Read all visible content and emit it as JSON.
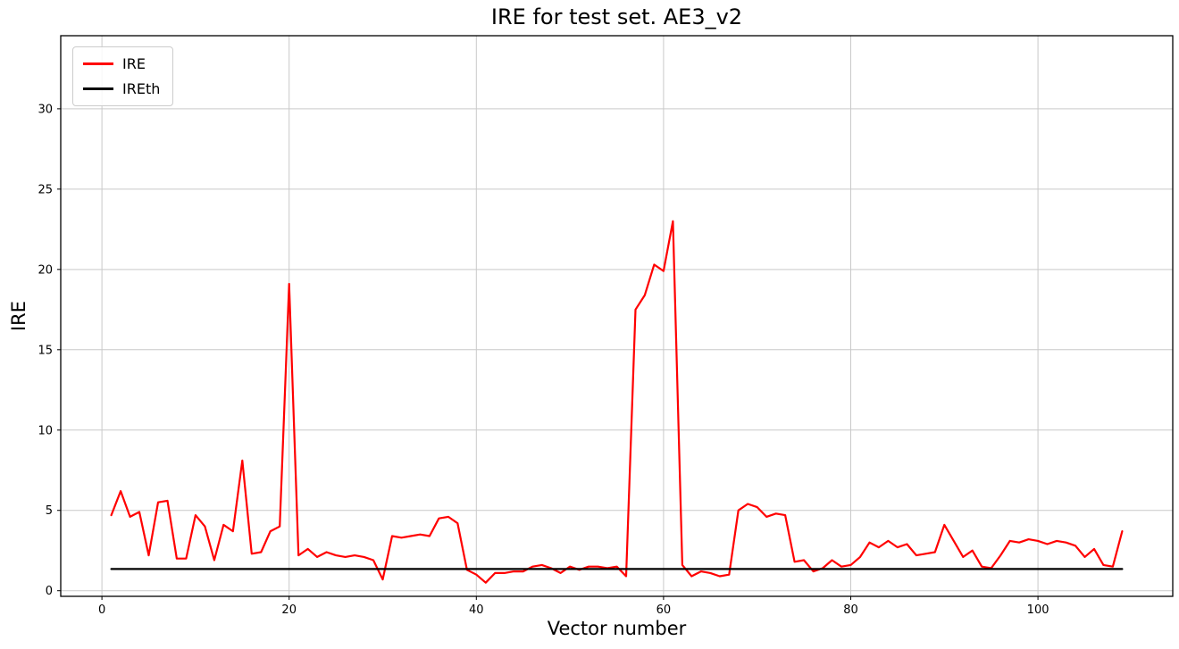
{
  "chart_data": {
    "type": "line",
    "title": "IRE for test set. AE3_v2",
    "xlabel": "Vector number",
    "ylabel": "IRE",
    "xlim": [
      -4.4,
      114.4
    ],
    "ylim": [
      -0.35,
      34.55
    ],
    "xticks": [
      0,
      20,
      40,
      60,
      80,
      100
    ],
    "yticks": [
      0,
      5,
      10,
      15,
      20,
      25,
      30
    ],
    "grid": true,
    "grid_color": "#c9c9c9",
    "legend_position": "upper-left",
    "x_start": 1,
    "series": [
      {
        "name": "IRE",
        "color": "#ff0000",
        "values": [
          4.7,
          6.2,
          4.6,
          4.9,
          2.2,
          5.5,
          5.6,
          2.0,
          2.0,
          4.7,
          4.0,
          1.9,
          4.1,
          3.7,
          8.1,
          2.3,
          2.4,
          3.7,
          4.0,
          19.1,
          2.2,
          2.6,
          2.1,
          2.4,
          2.2,
          2.1,
          2.2,
          2.1,
          1.9,
          0.7,
          3.4,
          3.3,
          3.4,
          3.5,
          3.4,
          4.5,
          4.6,
          4.2,
          1.3,
          1.0,
          0.5,
          1.1,
          1.1,
          1.2,
          1.2,
          1.5,
          1.6,
          1.4,
          1.1,
          1.5,
          1.3,
          1.5,
          1.5,
          1.4,
          1.5,
          0.9,
          17.5,
          18.4,
          20.3,
          19.9,
          23.0,
          1.6,
          0.9,
          1.2,
          1.1,
          0.9,
          1.0,
          5.0,
          5.4,
          5.2,
          4.6,
          4.8,
          4.7,
          1.8,
          1.9,
          1.2,
          1.4,
          1.9,
          1.5,
          1.6,
          2.1,
          3.0,
          2.7,
          3.1,
          2.7,
          2.9,
          2.2,
          2.3,
          2.4,
          4.1,
          3.1,
          2.1,
          2.5,
          1.5,
          1.4,
          2.2,
          3.1,
          3.0,
          3.2,
          3.1,
          2.9,
          3.1,
          3.0,
          2.8,
          2.1,
          2.6,
          1.6,
          1.5,
          3.7
        ]
      },
      {
        "name": "IREth",
        "color": "#000000",
        "constant_value": 1.35
      }
    ]
  }
}
